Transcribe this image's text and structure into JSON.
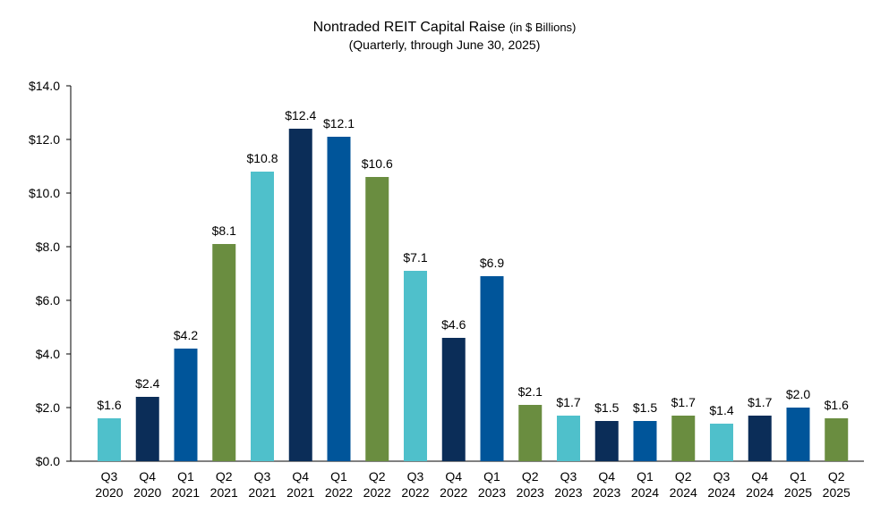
{
  "chart_data": {
    "type": "bar",
    "title": "Nontraded REIT Capital Raise",
    "title_unit": "(in $ Billions)",
    "subtitle": "(Quarterly, through June 30, 2025)",
    "xlabel": "",
    "ylabel": "",
    "ylim": [
      0,
      14
    ],
    "ytick_step": 2,
    "ytick_labels": [
      "$0.0",
      "$2.0",
      "$4.0",
      "$6.0",
      "$8.0",
      "$10.0",
      "$12.0",
      "$14.0"
    ],
    "grid": false,
    "legend": "none",
    "categories": [
      [
        "Q3",
        "2020"
      ],
      [
        "Q4",
        "2020"
      ],
      [
        "Q1",
        "2021"
      ],
      [
        "Q2",
        "2021"
      ],
      [
        "Q3",
        "2021"
      ],
      [
        "Q4",
        "2021"
      ],
      [
        "Q1",
        "2022"
      ],
      [
        "Q2",
        "2022"
      ],
      [
        "Q3",
        "2022"
      ],
      [
        "Q4",
        "2022"
      ],
      [
        "Q1",
        "2023"
      ],
      [
        "Q2",
        "2023"
      ],
      [
        "Q3",
        "2023"
      ],
      [
        "Q4",
        "2023"
      ],
      [
        "Q1",
        "2024"
      ],
      [
        "Q2",
        "2024"
      ],
      [
        "Q3",
        "2024"
      ],
      [
        "Q4",
        "2024"
      ],
      [
        "Q1",
        "2025"
      ],
      [
        "Q2",
        "2025"
      ]
    ],
    "values": [
      1.6,
      2.4,
      4.2,
      8.1,
      10.8,
      12.4,
      12.1,
      10.6,
      7.1,
      4.6,
      6.9,
      2.1,
      1.7,
      1.5,
      1.5,
      1.7,
      1.4,
      1.7,
      2.0,
      1.6
    ],
    "value_labels": [
      "$1.6",
      "$2.4",
      "$4.2",
      "$8.1",
      "$10.8",
      "$12.4",
      "$12.1",
      "$10.6",
      "$7.1",
      "$4.6",
      "$6.9",
      "$2.1",
      "$1.7",
      "$1.5",
      "$1.5",
      "$1.7",
      "$1.4",
      "$1.7",
      "$2.0",
      "$1.6"
    ],
    "quarter_colors": {
      "Q1": "#00559a",
      "Q2": "#6a8d40",
      "Q3": "#4fc0cb",
      "Q4": "#0b2d58"
    }
  }
}
